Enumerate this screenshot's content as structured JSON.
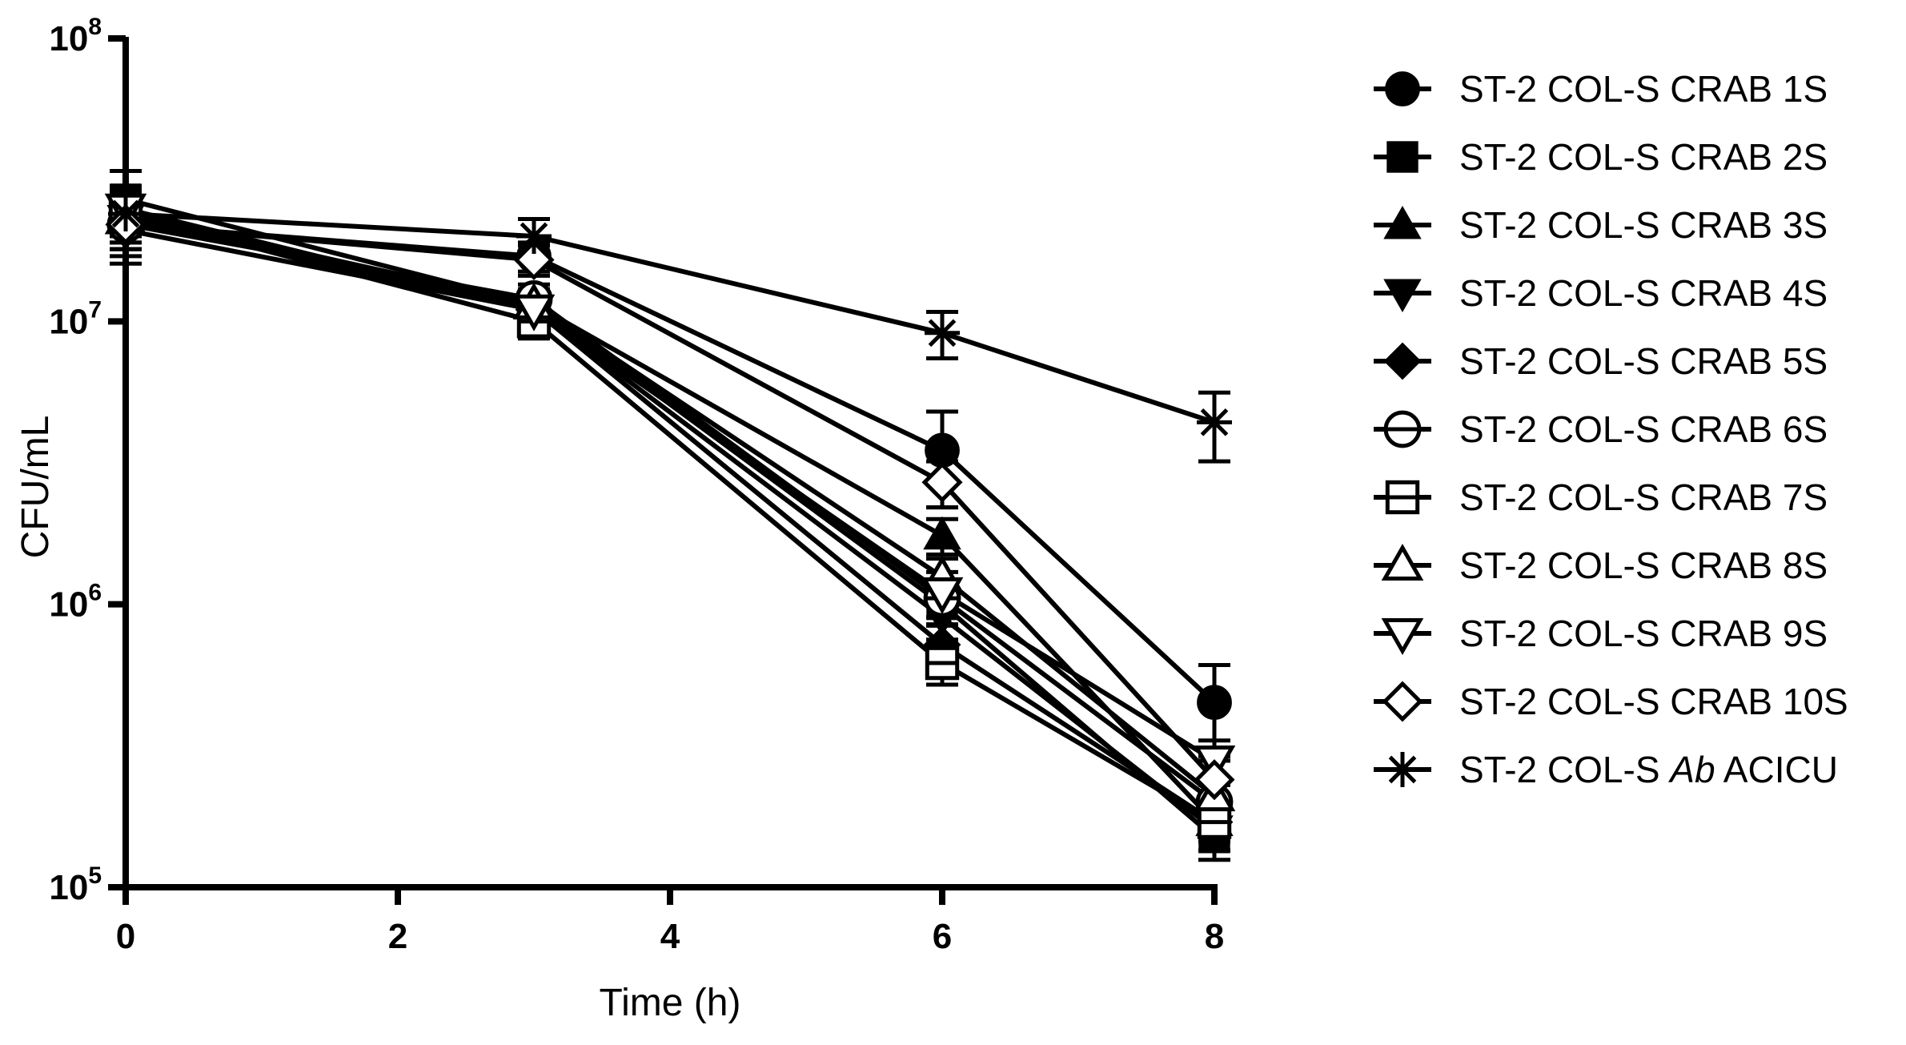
{
  "chart_data": {
    "type": "line",
    "xlabel": "Time (h)",
    "ylabel": "CFU/mL",
    "xlim": [
      0,
      8
    ],
    "ylim": [
      100000,
      100000000
    ],
    "yscale": "log",
    "x_ticks": [
      0,
      2,
      4,
      6,
      8
    ],
    "y_ticks": [
      {
        "value": 100000,
        "base": "10",
        "exp": "5"
      },
      {
        "value": 1000000,
        "base": "10",
        "exp": "6"
      },
      {
        "value": 10000000,
        "base": "10",
        "exp": "7"
      },
      {
        "value": 100000000,
        "base": "10",
        "exp": "8"
      }
    ],
    "grid": false,
    "legend_position": "right",
    "color": "#000000",
    "x": [
      0,
      3,
      6,
      8
    ],
    "series": [
      {
        "name": "ST-2 COL-S CRAB 1S",
        "marker": "circle-filled",
        "values": [
          22000000,
          17000000,
          3500000,
          450000
        ],
        "err": [
          4000000,
          2000000,
          1300000,
          160000
        ]
      },
      {
        "name": "ST-2 COL-S CRAB 2S",
        "marker": "square-filled",
        "values": [
          27000000,
          11500000,
          1000000,
          150000
        ],
        "err": [
          7000000,
          1500000,
          150000,
          25000
        ]
      },
      {
        "name": "ST-2 COL-S CRAB 3S",
        "marker": "triangle-up-filled",
        "values": [
          24000000,
          11500000,
          1750000,
          170000
        ],
        "err": [
          5000000,
          1500000,
          250000,
          25000
        ]
      },
      {
        "name": "ST-2 COL-S CRAB 4S",
        "marker": "triangle-down-filled",
        "values": [
          23000000,
          11000000,
          900000,
          160000
        ],
        "err": [
          5000000,
          1500000,
          150000,
          25000
        ]
      },
      {
        "name": "ST-2 COL-S CRAB 5S",
        "marker": "diamond-filled",
        "values": [
          21000000,
          11000000,
          720000,
          170000
        ],
        "err": [
          5000000,
          1500000,
          120000,
          25000
        ]
      },
      {
        "name": "ST-2 COL-S CRAB 6S",
        "marker": "circle-open",
        "values": [
          22000000,
          12000000,
          1050000,
          200000
        ],
        "err": [
          5000000,
          1500000,
          150000,
          30000
        ]
      },
      {
        "name": "ST-2 COL-S CRAB 7S",
        "marker": "square-open",
        "values": [
          24000000,
          10000000,
          620000,
          170000
        ],
        "err": [
          5000000,
          1300000,
          100000,
          25000
        ]
      },
      {
        "name": "ST-2 COL-S CRAB 8S",
        "marker": "triangle-up-open",
        "values": [
          23000000,
          11500000,
          1250000,
          210000
        ],
        "err": [
          5000000,
          1500000,
          200000,
          30000
        ]
      },
      {
        "name": "ST-2 COL-S CRAB 9S",
        "marker": "triangle-down-open",
        "values": [
          25000000,
          11000000,
          1100000,
          280000
        ],
        "err": [
          5000000,
          1500000,
          200000,
          50000
        ]
      },
      {
        "name": "ST-2 COL-S CRAB 10S",
        "marker": "diamond-open",
        "values": [
          22000000,
          16500000,
          2700000,
          240000
        ],
        "err": [
          4000000,
          2000000,
          500000,
          40000
        ]
      },
      {
        "name": "ST-2 COL-S Ab ACICU",
        "name_parts": [
          "ST-2 COL-S ",
          "Ab",
          " ACICU"
        ],
        "marker": "asterisk",
        "values": [
          24000000,
          20000000,
          9100000,
          4400000
        ],
        "err": [
          4000000,
          3000000,
          1700000,
          1200000
        ]
      }
    ]
  }
}
